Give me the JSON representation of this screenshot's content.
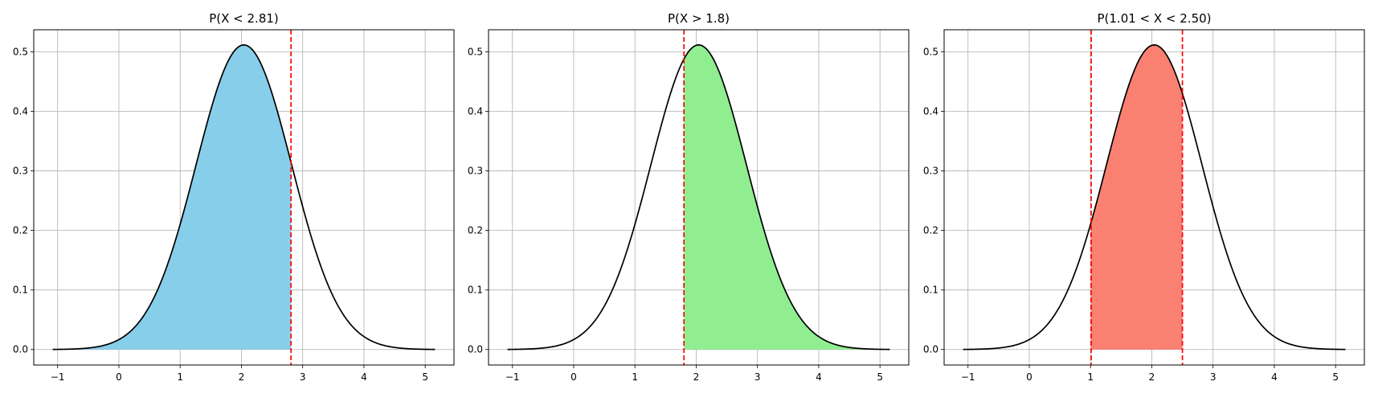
{
  "chart_data": [
    {
      "type": "area",
      "title": "P(X < 2.81)",
      "distribution": {
        "name": "normal",
        "mean": 2.04,
        "sd": 0.78
      },
      "x_range": [
        -1.08,
        5.16
      ],
      "shade": {
        "from": -1.08,
        "to": 2.81
      },
      "lines": [
        2.81
      ],
      "fill_color": "#87CEEB",
      "xlim": [
        -1.39,
        5.47
      ],
      "ylim": [
        -0.026,
        0.537
      ],
      "xticks": [
        -1,
        0,
        1,
        2,
        3,
        4,
        5
      ],
      "xtick_labels": [
        "−1",
        "0",
        "1",
        "2",
        "3",
        "4",
        "5"
      ],
      "yticks": [
        0.0,
        0.1,
        0.2,
        0.3,
        0.4,
        0.5
      ],
      "ytick_labels": [
        "0.0",
        "0.1",
        "0.2",
        "0.3",
        "0.4",
        "0.5"
      ],
      "grid": true
    },
    {
      "type": "area",
      "title": "P(X > 1.8)",
      "distribution": {
        "name": "normal",
        "mean": 2.04,
        "sd": 0.78
      },
      "x_range": [
        -1.08,
        5.16
      ],
      "shade": {
        "from": 1.8,
        "to": 5.16
      },
      "lines": [
        1.8
      ],
      "fill_color": "#90EE90",
      "xlim": [
        -1.39,
        5.47
      ],
      "ylim": [
        -0.026,
        0.537
      ],
      "xticks": [
        -1,
        0,
        1,
        2,
        3,
        4,
        5
      ],
      "xtick_labels": [
        "−1",
        "0",
        "1",
        "2",
        "3",
        "4",
        "5"
      ],
      "yticks": [
        0.0,
        0.1,
        0.2,
        0.3,
        0.4,
        0.5
      ],
      "ytick_labels": [
        "0.0",
        "0.1",
        "0.2",
        "0.3",
        "0.4",
        "0.5"
      ],
      "grid": true
    },
    {
      "type": "area",
      "title": "P(1.01 < X < 2.50)",
      "distribution": {
        "name": "normal",
        "mean": 2.04,
        "sd": 0.78
      },
      "x_range": [
        -1.08,
        5.16
      ],
      "shade": {
        "from": 1.01,
        "to": 2.5
      },
      "lines": [
        1.01,
        2.5
      ],
      "fill_color": "#FA8072",
      "xlim": [
        -1.39,
        5.47
      ],
      "ylim": [
        -0.026,
        0.537
      ],
      "xticks": [
        -1,
        0,
        1,
        2,
        3,
        4,
        5
      ],
      "xtick_labels": [
        "−1",
        "0",
        "1",
        "2",
        "3",
        "4",
        "5"
      ],
      "yticks": [
        0.0,
        0.1,
        0.2,
        0.3,
        0.4,
        0.5
      ],
      "ytick_labels": [
        "0.0",
        "0.1",
        "0.2",
        "0.3",
        "0.4",
        "0.5"
      ],
      "grid": true
    }
  ],
  "colors": {
    "curve": "#000000",
    "threshold_line": "#FF0000",
    "grid": "#b0b0b0"
  }
}
